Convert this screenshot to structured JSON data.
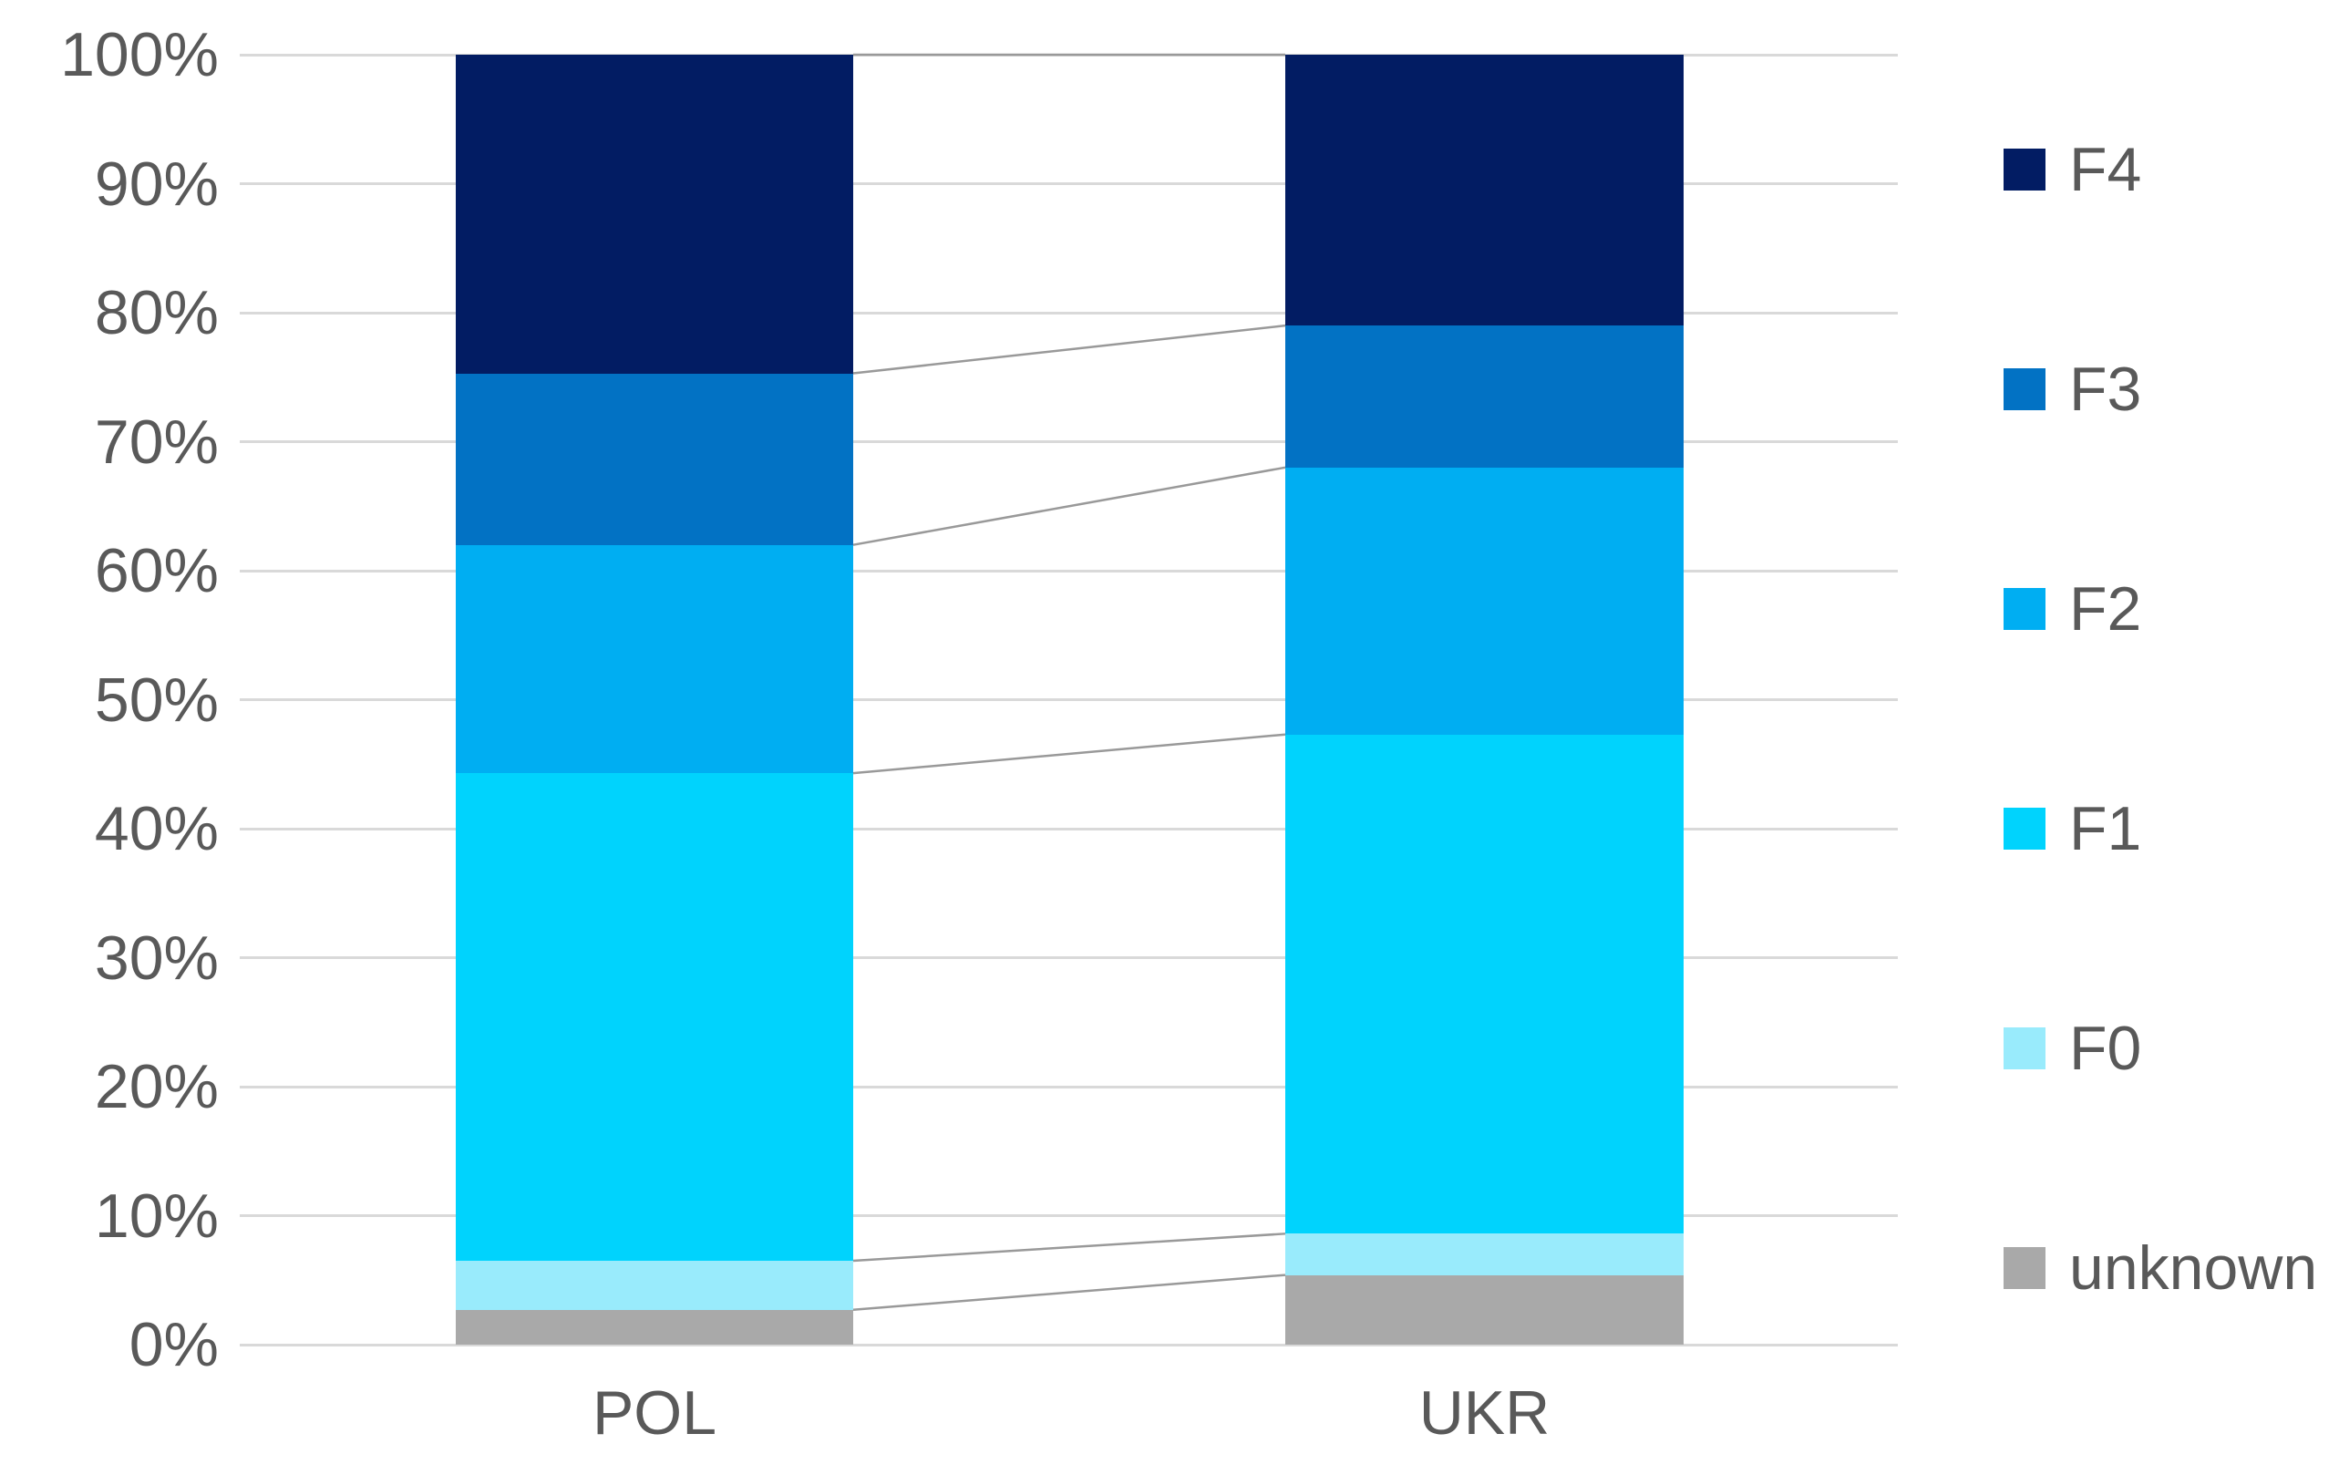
{
  "chart_data": {
    "type": "bar",
    "subtype": "stacked-100-percent-column",
    "title": "",
    "xlabel": "",
    "ylabel": "",
    "categories": [
      "POL",
      "UKR"
    ],
    "series": [
      {
        "name": "unknown",
        "color": "#a9a9a9",
        "values": [
          2.7,
          5.4
        ]
      },
      {
        "name": "F0",
        "color": "#99ebfc",
        "values": [
          3.8,
          3.2
        ]
      },
      {
        "name": "F1",
        "color": "#00d3fd",
        "values": [
          37.8,
          38.7
        ]
      },
      {
        "name": "F2",
        "color": "#00aef2",
        "values": [
          17.7,
          20.7
        ]
      },
      {
        "name": "F3",
        "color": "#0272c4",
        "values": [
          13.3,
          11.0
        ]
      },
      {
        "name": "F4",
        "color": "#021c63",
        "values": [
          24.7,
          21.0
        ]
      }
    ],
    "yticks": [
      "0%",
      "10%",
      "20%",
      "30%",
      "40%",
      "50%",
      "60%",
      "70%",
      "80%",
      "90%",
      "100%"
    ],
    "ylim": [
      0,
      100
    ],
    "grid": true,
    "connector_lines": true,
    "legend_position": "right",
    "legend_order": [
      "F4",
      "F3",
      "F2",
      "F1",
      "F0",
      "unknown"
    ]
  },
  "colors": {
    "gridline": "#d9d9d9",
    "connector": "#999999",
    "tick_text": "#595959",
    "background": "#ffffff"
  }
}
